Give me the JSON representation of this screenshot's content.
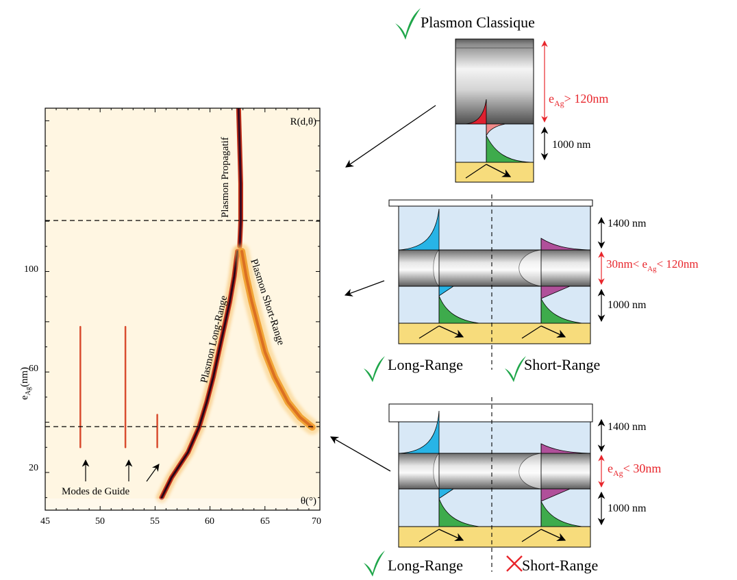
{
  "chart": {
    "legend_label": "R(d,θ)",
    "x_axis_label": "θ(°)",
    "y_axis_label_main": "e",
    "y_axis_label_sub": "Ag",
    "y_axis_label_unit": "(nm)",
    "x_ticks": [
      "45",
      "50",
      "55",
      "60",
      "65",
      "70"
    ],
    "y_ticks": [
      "20",
      "60",
      "100"
    ],
    "annotation_propagatif": "Plasmon Propagatif",
    "annotation_long_range": "Plasmon Long-Range",
    "annotation_short_range": "Plasmon Short-Range",
    "annotation_guide": "Modes de Guide"
  },
  "chart_data": {
    "type": "heatmap",
    "legend": "R(d,θ)",
    "xlabel": "θ(°)",
    "ylabel": "eAg(nm)",
    "x_ticks": [
      45,
      50,
      55,
      60,
      65,
      70
    ],
    "y_ticks": [
      20,
      60,
      100
    ],
    "xlim": [
      45,
      70
    ],
    "ylim": [
      5,
      165
    ],
    "thresholds_eAg_nm": [
      30,
      120
    ],
    "modes": [
      {
        "name": "Plasmon Propagatif",
        "points": [
          [
            62.6,
            165
          ],
          [
            62.7,
            150
          ],
          [
            62.8,
            135
          ],
          [
            62.8,
            120
          ],
          [
            62.7,
            110
          ]
        ]
      },
      {
        "name": "Plasmon Long-Range",
        "points": [
          [
            62.5,
            108
          ],
          [
            62.2,
            98
          ],
          [
            61.8,
            88
          ],
          [
            61.3,
            78
          ],
          [
            60.8,
            68
          ],
          [
            60.3,
            58
          ],
          [
            59.7,
            48
          ],
          [
            59.0,
            38
          ],
          [
            58.0,
            28
          ],
          [
            56.5,
            18
          ],
          [
            55.6,
            10
          ]
        ]
      },
      {
        "name": "Plasmon Short-Range",
        "points": [
          [
            62.9,
            108
          ],
          [
            63.3,
            98
          ],
          [
            63.8,
            88
          ],
          [
            64.4,
            78
          ],
          [
            65.0,
            68
          ],
          [
            65.9,
            58
          ],
          [
            67.1,
            48
          ],
          [
            68.2,
            42
          ],
          [
            69.3,
            38
          ]
        ]
      },
      {
        "name": "Modes de Guide",
        "points": [
          [
            48.2,
            78
          ],
          [
            48.2,
            30
          ]
        ]
      },
      {
        "name": "Modes de Guide",
        "points": [
          [
            52.3,
            78
          ],
          [
            52.3,
            30
          ]
        ]
      },
      {
        "name": "Modes de Guide",
        "points": [
          [
            55.2,
            43
          ],
          [
            55.2,
            30
          ]
        ]
      }
    ]
  },
  "panels": {
    "top_title": "Plasmon Classique",
    "top_thickness_main": "e",
    "top_thickness_sub": "Ag",
    "top_thickness_rest": "> 120nm",
    "top_gap": "1000 nm",
    "mid_upper": "1400 nm",
    "mid_thickness_pre": "30nm< e",
    "mid_thickness_sub": "Ag",
    "mid_thickness_post": "< 120nm",
    "mid_lower": "1000 nm",
    "mid_label_left": "Long-Range",
    "mid_label_right": "Short-Range",
    "bot_upper": "1400 nm",
    "bot_thickness_main": "e",
    "bot_thickness_sub": "Ag",
    "bot_thickness_rest": "< 30nm",
    "bot_lower": "1000 nm",
    "bot_label_left": "Long-Range",
    "bot_label_right": "Short-Range"
  },
  "colors": {
    "accent_red": "#e8262c",
    "check_green": "#1fa64a",
    "dielectric_blue": "#d8e8f6",
    "substrate_yellow": "#f7dc7c",
    "field_red": "#e0202f",
    "field_green": "#3eab4c",
    "field_cyan": "#28b4e6",
    "field_magenta": "#b0509a"
  }
}
